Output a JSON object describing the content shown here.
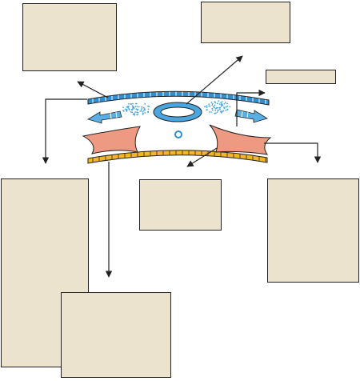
{
  "diagram": {
    "colors": {
      "outline": "#222222",
      "box_fill": "#ece3cf",
      "upper_membrane": "#2f8fd2",
      "lower_membrane": "#f2b526",
      "ring_fill": "#4aa6e0",
      "dots": "#4aa6e0",
      "flagellum_fill": "#5aaee4",
      "pink_cells": "#ee9a82"
    },
    "boxes": [
      {
        "id": "box-a",
        "text": ""
      },
      {
        "id": "box-b",
        "text": ""
      },
      {
        "id": "box-c",
        "text": ""
      },
      {
        "id": "box-d",
        "text": ""
      },
      {
        "id": "box-e",
        "text": ""
      },
      {
        "id": "box-f",
        "text": ""
      },
      {
        "id": "box-g",
        "text": ""
      }
    ]
  }
}
